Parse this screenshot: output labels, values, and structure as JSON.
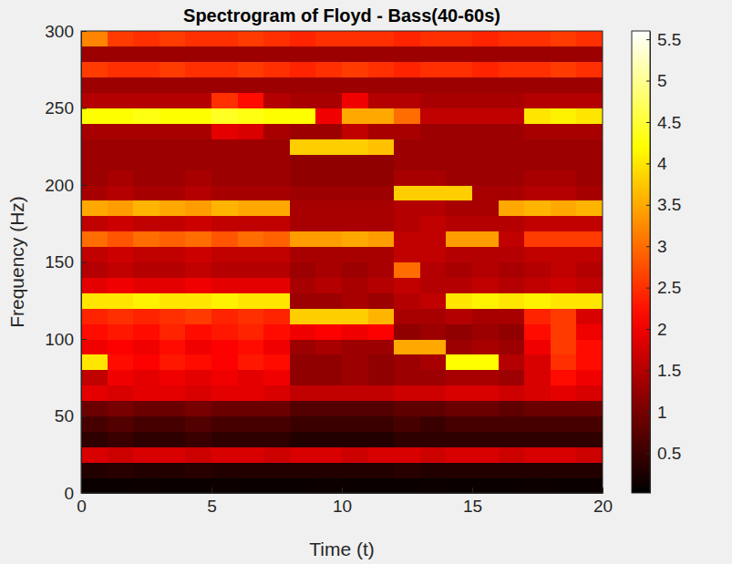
{
  "chart_data": {
    "type": "heatmap",
    "title": "Spectrogram of Floyd - Bass(40-60s)",
    "x_label": "Time (t)",
    "y_label": "Frequency (Hz)",
    "color": "hot",
    "xlim": [
      0,
      20
    ],
    "xticks": [
      0,
      5,
      10,
      15,
      20
    ],
    "ylim": [
      0,
      300
    ],
    "yticks": [
      0,
      50,
      100,
      150,
      200,
      250,
      300
    ],
    "x": [
      0.5,
      1.5,
      2.5,
      3.5,
      4.5,
      5.5,
      6.5,
      7.5,
      8.5,
      9.5,
      10.5,
      11.5,
      12.5,
      13.5,
      14.5,
      15.5,
      16.5,
      17.5,
      18.5,
      19.5
    ],
    "y": [
      5,
      15,
      25,
      35,
      45,
      55,
      65,
      75,
      85,
      95,
      105,
      115,
      125,
      135,
      145,
      155,
      165,
      175,
      185,
      195,
      205,
      215,
      225,
      235,
      245,
      255,
      265,
      275,
      285,
      295
    ],
    "values": [
      [
        0.1,
        0.1,
        0.12,
        0.1,
        0.1,
        0.12,
        0.1,
        0.1,
        0.1,
        0.12,
        0.1,
        0.1,
        0.1,
        0.12,
        0.1,
        0.1,
        0.1,
        0.12,
        0.1,
        0.1
      ],
      [
        0.3,
        0.35,
        0.3,
        0.3,
        0.35,
        0.3,
        0.3,
        0.3,
        0.3,
        0.3,
        0.3,
        0.3,
        0.35,
        0.3,
        0.3,
        0.3,
        0.3,
        0.3,
        0.3,
        0.3
      ],
      [
        1.8,
        1.7,
        1.8,
        1.8,
        1.7,
        1.8,
        1.8,
        1.7,
        1.8,
        1.8,
        1.7,
        1.8,
        1.8,
        1.7,
        1.8,
        1.8,
        1.7,
        1.8,
        1.8,
        1.7
      ],
      [
        0.4,
        0.5,
        0.4,
        0.4,
        0.5,
        0.4,
        0.4,
        0.4,
        0.3,
        0.3,
        0.3,
        0.3,
        0.4,
        0.4,
        0.4,
        0.4,
        0.4,
        0.4,
        0.4,
        0.4
      ],
      [
        0.6,
        0.7,
        0.6,
        0.6,
        0.7,
        0.6,
        0.6,
        0.6,
        0.5,
        0.5,
        0.5,
        0.5,
        0.6,
        0.5,
        0.6,
        0.6,
        0.6,
        0.6,
        0.6,
        0.6
      ],
      [
        0.9,
        1.0,
        0.9,
        0.9,
        1.0,
        0.9,
        0.9,
        0.9,
        0.7,
        0.7,
        0.7,
        0.7,
        0.8,
        0.8,
        0.9,
        0.9,
        0.8,
        0.9,
        0.9,
        0.9
      ],
      [
        1.9,
        1.8,
        1.9,
        1.9,
        1.8,
        1.9,
        1.9,
        1.8,
        1.6,
        1.6,
        1.6,
        1.6,
        1.7,
        1.7,
        1.8,
        1.8,
        1.7,
        1.8,
        1.9,
        1.8
      ],
      [
        1.6,
        2.0,
        1.9,
        2.0,
        1.9,
        2.0,
        1.9,
        2.0,
        1.2,
        1.2,
        1.3,
        1.2,
        1.3,
        1.3,
        1.4,
        1.4,
        1.3,
        1.8,
        2.2,
        2.0
      ],
      [
        4.0,
        2.2,
        2.1,
        2.3,
        2.2,
        2.1,
        2.3,
        2.2,
        1.2,
        1.2,
        1.3,
        1.2,
        1.3,
        1.4,
        4.2,
        4.2,
        1.5,
        1.8,
        2.5,
        2.2
      ],
      [
        2.0,
        2.1,
        2.0,
        2.2,
        2.0,
        2.1,
        2.2,
        2.0,
        1.3,
        1.4,
        1.3,
        1.3,
        3.5,
        3.5,
        1.3,
        1.4,
        1.3,
        2.0,
        2.6,
        2.2
      ],
      [
        2.2,
        2.3,
        2.2,
        2.4,
        2.2,
        2.3,
        2.4,
        2.2,
        2.0,
        2.1,
        2.0,
        2.1,
        1.2,
        1.3,
        1.2,
        1.3,
        1.2,
        2.2,
        2.6,
        2.0
      ],
      [
        2.4,
        2.5,
        2.4,
        2.5,
        2.6,
        2.4,
        2.5,
        2.4,
        3.8,
        3.8,
        3.8,
        3.6,
        1.4,
        1.4,
        1.5,
        1.4,
        1.4,
        2.4,
        2.6,
        1.8
      ],
      [
        4.0,
        4.0,
        4.1,
        4.0,
        4.0,
        4.1,
        4.0,
        4.0,
        1.3,
        1.3,
        1.4,
        1.3,
        1.5,
        1.6,
        4.0,
        4.1,
        4.0,
        4.1,
        4.0,
        4.0
      ],
      [
        1.9,
        2.0,
        1.9,
        1.9,
        2.0,
        1.9,
        1.9,
        1.9,
        1.4,
        1.5,
        1.4,
        1.5,
        1.6,
        1.5,
        1.5,
        1.6,
        1.5,
        1.6,
        1.7,
        1.6
      ],
      [
        1.5,
        1.6,
        1.5,
        1.5,
        1.6,
        1.5,
        1.5,
        1.5,
        1.3,
        1.4,
        1.3,
        1.4,
        3.0,
        1.5,
        1.4,
        1.5,
        1.4,
        1.5,
        1.6,
        1.5
      ],
      [
        1.6,
        1.7,
        1.6,
        1.6,
        1.7,
        1.6,
        1.6,
        1.6,
        1.4,
        1.4,
        1.4,
        1.4,
        1.6,
        1.6,
        1.5,
        1.5,
        1.5,
        1.6,
        1.6,
        1.6
      ],
      [
        3.0,
        2.8,
        3.0,
        2.9,
        3.0,
        2.8,
        3.0,
        2.9,
        3.4,
        3.4,
        3.5,
        3.4,
        1.6,
        1.6,
        3.4,
        3.4,
        1.6,
        2.6,
        2.6,
        2.6
      ],
      [
        1.6,
        1.7,
        1.6,
        1.6,
        1.7,
        1.6,
        1.6,
        1.6,
        1.4,
        1.4,
        1.4,
        1.4,
        1.5,
        1.6,
        1.5,
        1.5,
        1.5,
        1.6,
        1.6,
        1.6
      ],
      [
        3.5,
        3.4,
        3.6,
        3.5,
        3.4,
        3.6,
        3.5,
        3.5,
        1.4,
        1.4,
        1.4,
        1.4,
        1.5,
        1.5,
        1.4,
        1.4,
        3.5,
        3.6,
        3.5,
        3.6
      ],
      [
        1.4,
        1.5,
        1.4,
        1.4,
        1.5,
        1.4,
        1.4,
        1.4,
        1.3,
        1.3,
        1.3,
        1.3,
        3.8,
        3.8,
        3.8,
        1.4,
        1.4,
        1.5,
        1.5,
        1.4
      ],
      [
        1.3,
        1.4,
        1.3,
        1.3,
        1.4,
        1.3,
        1.3,
        1.3,
        1.2,
        1.2,
        1.2,
        1.2,
        1.4,
        1.4,
        1.3,
        1.3,
        1.3,
        1.4,
        1.4,
        1.3
      ],
      [
        1.3,
        1.3,
        1.3,
        1.3,
        1.3,
        1.3,
        1.3,
        1.3,
        1.2,
        1.2,
        1.2,
        1.2,
        1.3,
        1.3,
        1.3,
        1.3,
        1.3,
        1.3,
        1.3,
        1.3
      ],
      [
        1.3,
        1.3,
        1.3,
        1.3,
        1.3,
        1.3,
        1.3,
        1.3,
        3.8,
        3.8,
        3.8,
        3.7,
        1.3,
        1.3,
        1.3,
        1.3,
        1.3,
        1.3,
        1.3,
        1.3
      ],
      [
        1.4,
        1.4,
        1.4,
        1.4,
        1.4,
        1.9,
        1.8,
        1.4,
        1.3,
        1.3,
        1.6,
        1.4,
        1.4,
        1.3,
        1.3,
        1.3,
        1.3,
        1.4,
        1.4,
        1.4
      ],
      [
        4.2,
        4.2,
        4.3,
        4.2,
        4.2,
        4.4,
        4.3,
        4.2,
        4.2,
        2.0,
        3.5,
        3.5,
        3.0,
        1.6,
        1.6,
        1.6,
        1.6,
        4.0,
        4.1,
        4.0
      ],
      [
        1.5,
        1.5,
        1.5,
        1.5,
        1.5,
        2.5,
        2.2,
        1.5,
        1.4,
        1.4,
        2.0,
        1.5,
        1.5,
        1.4,
        1.4,
        1.4,
        1.4,
        1.5,
        1.5,
        1.5
      ],
      [
        1.3,
        1.3,
        1.3,
        1.3,
        1.3,
        1.3,
        1.3,
        1.3,
        1.3,
        1.3,
        1.3,
        1.3,
        1.3,
        1.3,
        1.3,
        1.3,
        1.3,
        1.3,
        1.3,
        1.3
      ],
      [
        2.6,
        2.5,
        2.5,
        2.6,
        2.5,
        2.5,
        2.6,
        2.5,
        2.4,
        2.5,
        2.6,
        2.5,
        2.4,
        2.5,
        2.5,
        2.4,
        2.5,
        2.5,
        2.6,
        2.5
      ],
      [
        1.3,
        1.3,
        1.3,
        1.3,
        1.3,
        1.3,
        1.3,
        1.3,
        1.3,
        1.3,
        1.3,
        1.3,
        1.3,
        1.3,
        1.3,
        1.3,
        1.3,
        1.3,
        1.3,
        1.3
      ],
      [
        3.2,
        2.6,
        2.5,
        2.6,
        2.5,
        2.5,
        2.6,
        2.5,
        2.4,
        2.5,
        2.5,
        2.5,
        2.4,
        2.5,
        2.5,
        2.4,
        2.5,
        2.5,
        2.6,
        2.5
      ]
    ],
    "colorbar": {
      "range": [
        0.02,
        5.6
      ],
      "ticks": [
        0.5,
        1,
        1.5,
        2,
        2.5,
        3,
        3.5,
        4,
        4.5,
        5,
        5.5
      ]
    }
  }
}
